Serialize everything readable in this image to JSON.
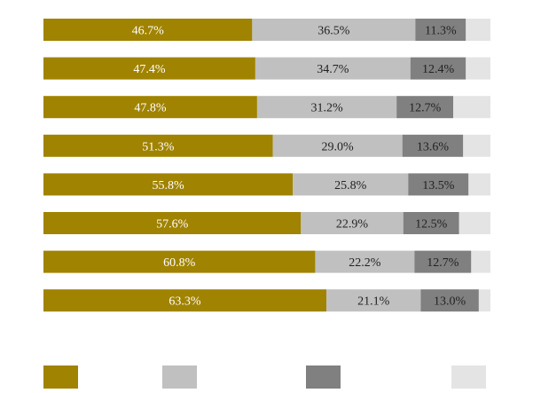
{
  "chart_data": {
    "type": "bar",
    "orientation": "horizontal",
    "stacked": true,
    "normalized": true,
    "value_unit": "%",
    "title": "",
    "xlabel": "",
    "ylabel": "",
    "xlim": [
      0,
      100
    ],
    "grid": false,
    "legend_position": "bottom",
    "colors": [
      "#a08300",
      "#c0c0c0",
      "#808080",
      "#e4e4e4"
    ],
    "label_colors": [
      "#ffffff",
      "#222222",
      "#222222",
      ""
    ],
    "series": [
      {
        "values": [
          46.7,
          47.4,
          47.8,
          51.3,
          55.8,
          57.6,
          60.8,
          63.3
        ],
        "labels": [
          "46.7%",
          "47.4%",
          "47.8%",
          "51.3%",
          "55.8%",
          "57.6%",
          "60.8%",
          "63.3%"
        ]
      },
      {
        "values": [
          36.5,
          34.7,
          31.2,
          29.0,
          25.8,
          22.9,
          22.2,
          21.1
        ],
        "labels": [
          "36.5%",
          "34.7%",
          "31.2%",
          "29.0%",
          "25.8%",
          "22.9%",
          "22.2%",
          "21.1%"
        ]
      },
      {
        "values": [
          11.3,
          12.4,
          12.7,
          13.6,
          13.5,
          12.5,
          12.7,
          13.0
        ],
        "labels": [
          "11.3%",
          "12.4%",
          "12.7%",
          "13.6%",
          "13.5%",
          "12.5%",
          "12.7%",
          "13.0%"
        ]
      },
      {
        "values": [
          5.5,
          5.5,
          8.3,
          6.1,
          4.9,
          7.0,
          4.3,
          2.6
        ],
        "labels": [
          "",
          "",
          "",
          "",
          "",
          "",
          "",
          ""
        ]
      }
    ]
  }
}
